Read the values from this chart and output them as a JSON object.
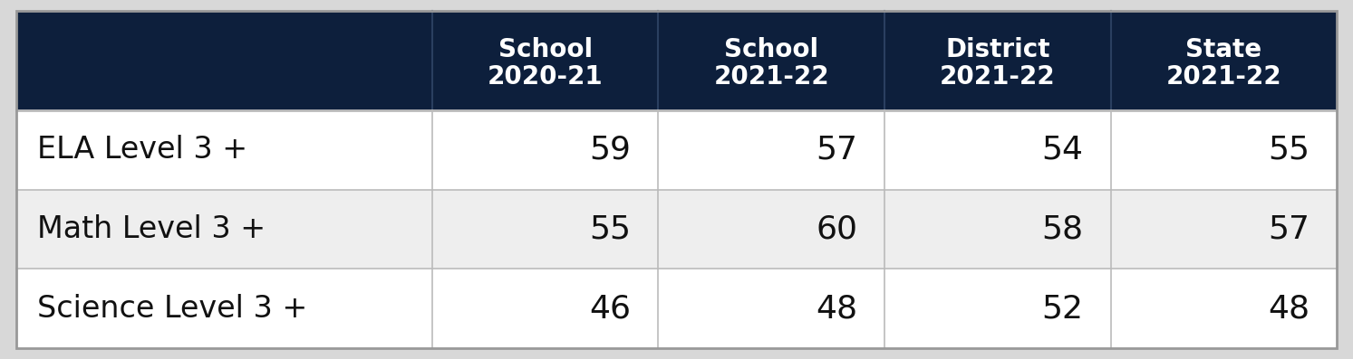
{
  "col_headers": [
    [
      "School",
      "2020-21"
    ],
    [
      "School",
      "2021-22"
    ],
    [
      "District",
      "2021-22"
    ],
    [
      "State",
      "2021-22"
    ]
  ],
  "rows": [
    {
      "label": "ELA Level 3 +",
      "values": [
        59,
        57,
        54,
        55
      ],
      "bg": "#ffffff"
    },
    {
      "label": "Math Level 3 +",
      "values": [
        55,
        60,
        58,
        57
      ],
      "bg": "#eeeeee"
    },
    {
      "label": "Science Level 3 +",
      "values": [
        46,
        48,
        52,
        48
      ],
      "bg": "#ffffff"
    }
  ],
  "header_bg": "#0d1f3c",
  "header_text_color": "#ffffff",
  "row_text_color": "#111111",
  "border_color": "#bbbbbb",
  "outer_border_color": "#999999",
  "fig_bg": "#d8d8d8",
  "header_fontsize": 20,
  "data_fontsize": 26,
  "label_fontsize": 24
}
